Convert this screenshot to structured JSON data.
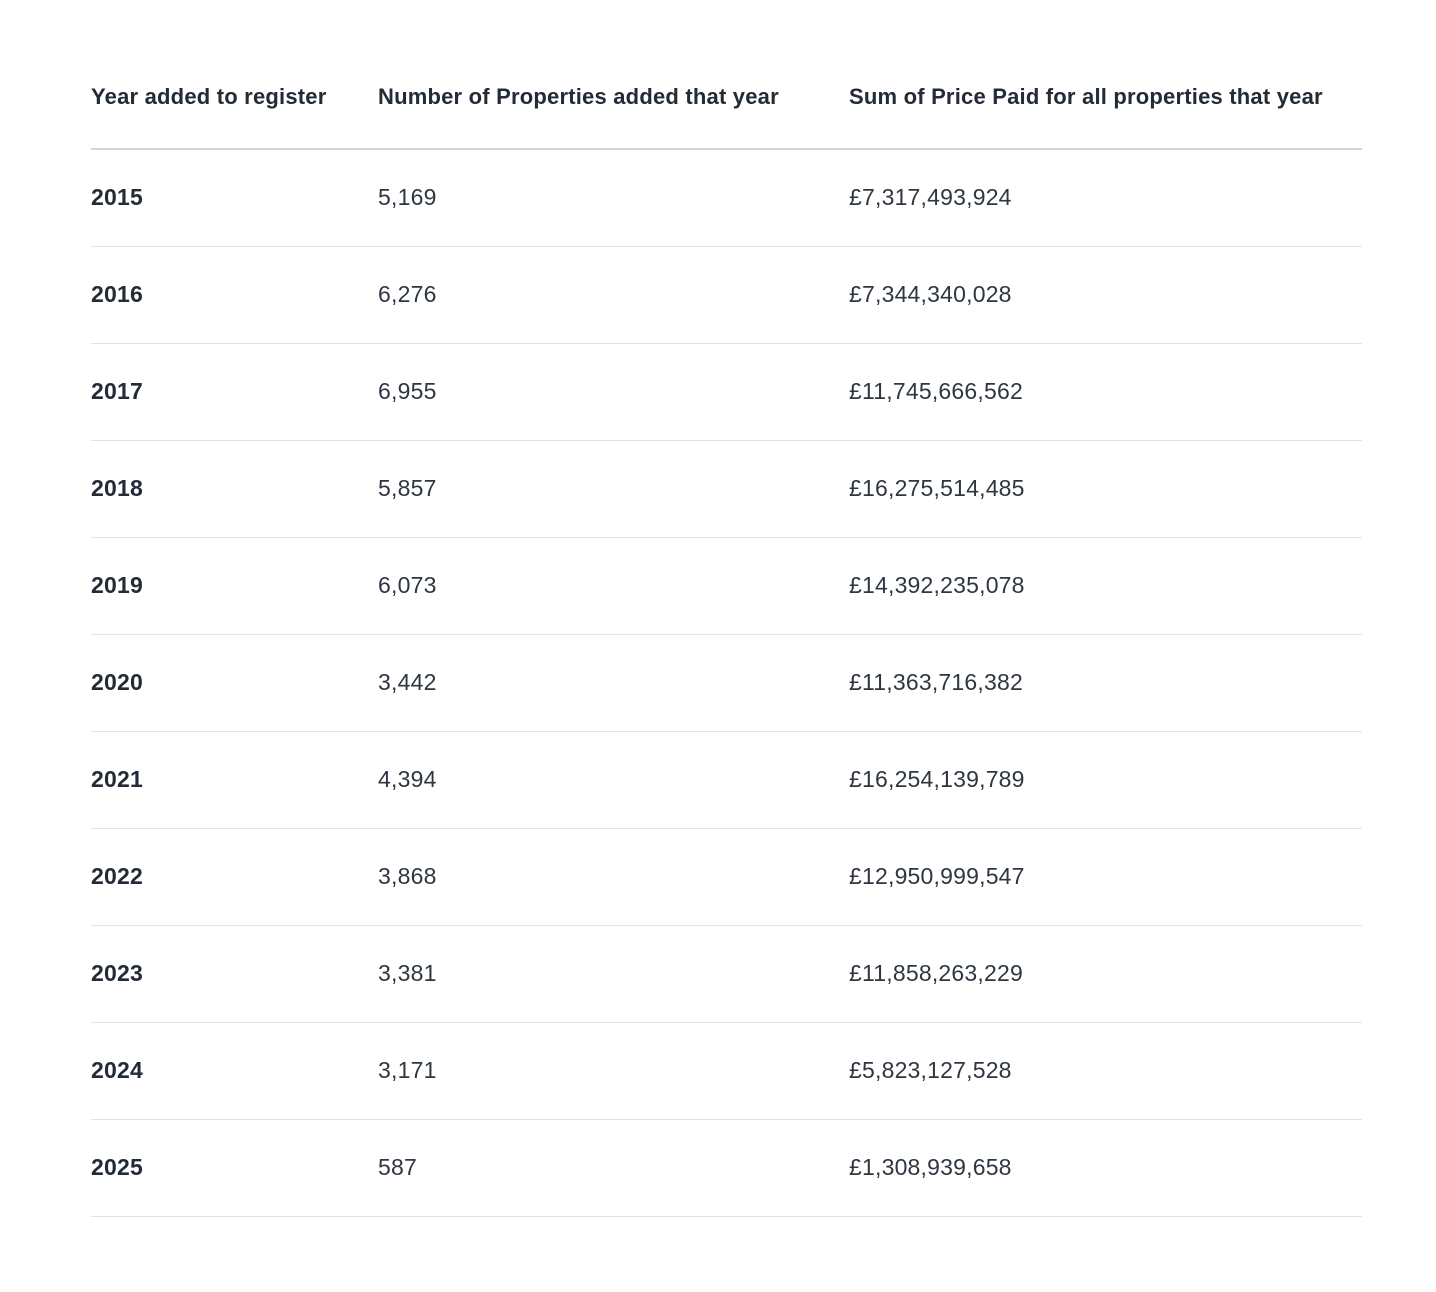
{
  "chart_data": {
    "type": "table",
    "columns": [
      "Year added to register",
      "Number of Properties added that year",
      "Sum of Price Paid for all properties that year"
    ],
    "rows": [
      [
        "2015",
        "5,169",
        "£7,317,493,924"
      ],
      [
        "2016",
        "6,276",
        "£7,344,340,028"
      ],
      [
        "2017",
        "6,955",
        "£11,745,666,562"
      ],
      [
        "2018",
        "5,857",
        "£16,275,514,485"
      ],
      [
        "2019",
        "6,073",
        "£14,392,235,078"
      ],
      [
        "2020",
        "3,442",
        "£11,363,716,382"
      ],
      [
        "2021",
        "4,394",
        "£16,254,139,789"
      ],
      [
        "2022",
        "3,868",
        "£12,950,999,547"
      ],
      [
        "2023",
        "3,381",
        "£11,858,263,229"
      ],
      [
        "2024",
        "3,171",
        "£5,823,127,528"
      ],
      [
        "2025",
        "587",
        "£1,308,939,658"
      ]
    ],
    "layout_hints": {
      "grid": "horizontal row separators only",
      "year_column_bold": true
    }
  },
  "colors": {
    "background": "#ffffff",
    "header_text": "#222b36",
    "year_text": "#222b36",
    "cell_text": "#2e3641",
    "header_border": "#d5d7d9",
    "row_border": "#e1e3e5"
  }
}
